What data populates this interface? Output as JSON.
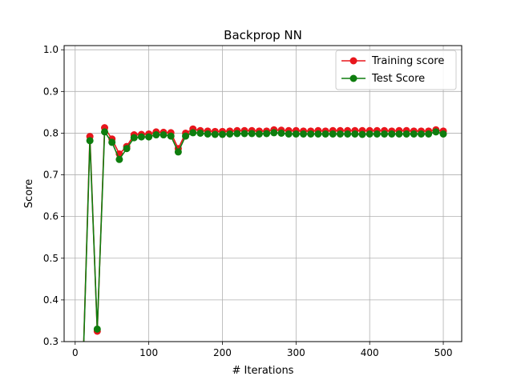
{
  "chart_data": {
    "type": "line",
    "title": "Backprop NN",
    "xlabel": "# Iterations",
    "ylabel": "Score",
    "xlim": [
      -15,
      525
    ],
    "ylim": [
      0.3,
      1.01
    ],
    "xticks": [
      0,
      100,
      200,
      300,
      400,
      500
    ],
    "yticks": [
      0.3,
      0.4,
      0.5,
      0.6,
      0.7,
      0.8,
      0.9,
      1.0
    ],
    "xtick_labels": [
      "0",
      "100",
      "200",
      "300",
      "400",
      "500"
    ],
    "ytick_labels": [
      "0.3",
      "0.4",
      "0.5",
      "0.6",
      "0.7",
      "0.8",
      "0.9",
      "1.0"
    ],
    "grid": true,
    "legend_position": "top-right",
    "x": [
      10,
      20,
      30,
      40,
      50,
      60,
      70,
      80,
      90,
      100,
      110,
      120,
      130,
      140,
      150,
      160,
      170,
      180,
      190,
      200,
      210,
      220,
      230,
      240,
      250,
      260,
      270,
      280,
      290,
      300,
      310,
      320,
      330,
      340,
      350,
      360,
      370,
      380,
      390,
      400,
      410,
      420,
      430,
      440,
      450,
      460,
      470,
      480,
      490,
      500
    ],
    "series": [
      {
        "name": "Training score",
        "color": "#e8161c",
        "values": [
          0.2,
          0.792,
          0.325,
          0.813,
          0.786,
          0.75,
          0.768,
          0.796,
          0.797,
          0.798,
          0.803,
          0.802,
          0.801,
          0.763,
          0.8,
          0.81,
          0.806,
          0.805,
          0.804,
          0.804,
          0.805,
          0.806,
          0.806,
          0.806,
          0.805,
          0.805,
          0.808,
          0.807,
          0.806,
          0.806,
          0.805,
          0.805,
          0.806,
          0.805,
          0.806,
          0.806,
          0.806,
          0.806,
          0.806,
          0.806,
          0.806,
          0.806,
          0.805,
          0.806,
          0.806,
          0.805,
          0.805,
          0.805,
          0.808,
          0.805
        ]
      },
      {
        "name": "Test Score",
        "color": "#0e7d0e",
        "values": [
          0.2,
          0.782,
          0.33,
          0.803,
          0.778,
          0.737,
          0.763,
          0.789,
          0.791,
          0.791,
          0.796,
          0.796,
          0.793,
          0.755,
          0.793,
          0.801,
          0.8,
          0.798,
          0.797,
          0.797,
          0.798,
          0.799,
          0.799,
          0.799,
          0.798,
          0.799,
          0.801,
          0.8,
          0.798,
          0.798,
          0.798,
          0.798,
          0.798,
          0.798,
          0.798,
          0.798,
          0.798,
          0.798,
          0.797,
          0.798,
          0.798,
          0.798,
          0.798,
          0.798,
          0.798,
          0.798,
          0.798,
          0.798,
          0.803,
          0.798
        ]
      }
    ]
  }
}
